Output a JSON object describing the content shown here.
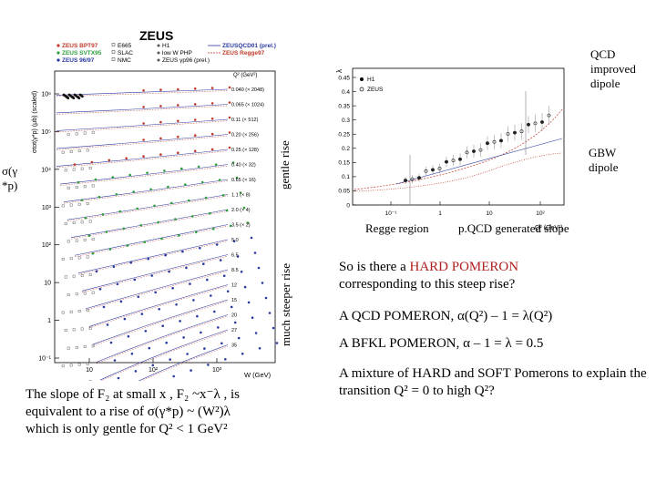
{
  "left_plot": {
    "brand": "ZEUS",
    "legend_col1": [
      {
        "label": "ZEUS BPT97",
        "color": "#c0392b"
      },
      {
        "label": "ZEUS SVTX95",
        "color": "#2e9e3e"
      },
      {
        "label": "ZEUS 96/97",
        "color": "#2a3aa0"
      }
    ],
    "legend_col2": [
      "E665",
      "SLAC",
      "NMC"
    ],
    "legend_col3": [
      "H1",
      "low W PHP",
      "ZEUS γp96 (prel.)"
    ],
    "legend_col4": [
      "ZEUSQCD01 (prel.)",
      "ZEUS Regge97"
    ],
    "q2_header": "Q² (GeV²)",
    "ylabel": "σtot(γ*p) (μb) (scaled)",
    "xlabel": "W (GeV)",
    "y_ticks": [
      "10⁶",
      "10⁵",
      "10⁴",
      "10³",
      "10²",
      "10",
      "1",
      "10⁻¹"
    ],
    "x_ticks": [
      "10",
      "10²",
      "10³"
    ],
    "q2_labels": [
      "0.040 (× 2048)",
      "0.065 (× 1024)",
      "0.11 (× 512)",
      "0.20 (× 256)",
      "0.25 (× 128)",
      "0.40 (× 32)",
      "0.65 (× 16)",
      "1.1 (× 8)",
      "2.0 (× 4)",
      "3.5 (× 2)",
      "5.0",
      "6.5",
      "8.5",
      "12",
      "15",
      "20",
      "27",
      "35"
    ]
  },
  "right_plot": {
    "ylabel": "λ",
    "xlabel": "Q² (GeV²)",
    "legend": [
      "H1",
      "ZEUS"
    ],
    "y_ticks": [
      "0.45",
      "0.4",
      "0.35",
      "0.3",
      "0.25",
      "0.2",
      "0.15",
      "0.1",
      "0.05",
      "0"
    ],
    "x_ticks": [
      "10⁻¹",
      "1",
      "10",
      "10²"
    ]
  },
  "labels": {
    "gentle_rise": "gentle rise",
    "steeper_rise": "much steeper rise",
    "sigma_left_1": "(",
    "sigma_left_2": "*p)",
    "qcd_dipole": "QCD improved dipole",
    "gbw_dipole": "GBW dipole",
    "regge_region": "Regge region",
    "pqcd_slope": "p.QCD generated slope"
  },
  "text": {
    "hard_pomeron_pre": "So is there a ",
    "hard_pomeron_red": "HARD POMERON",
    "hard_pomeron_post": "corresponding to this steep rise?",
    "qcd_pomeron": "A QCD POMERON, α(Q²) – 1 = λ(Q²)",
    "bfkl_pomeron": "A BFKL POMERON, α – 1 = λ    = 0.5",
    "mixture": "A mixture of HARD and SOFT Pomerons to explain the transition Q² = 0 to high Q²?",
    "slope_line1": "The slope of F₂ at small x , F₂ ~x⁻λ , is",
    "slope_line2": "equivalent to a rise of σ(γ*p) ~ (W²)λ",
    "slope_line3": "which is only gentle for Q² < 1 GeV²"
  }
}
